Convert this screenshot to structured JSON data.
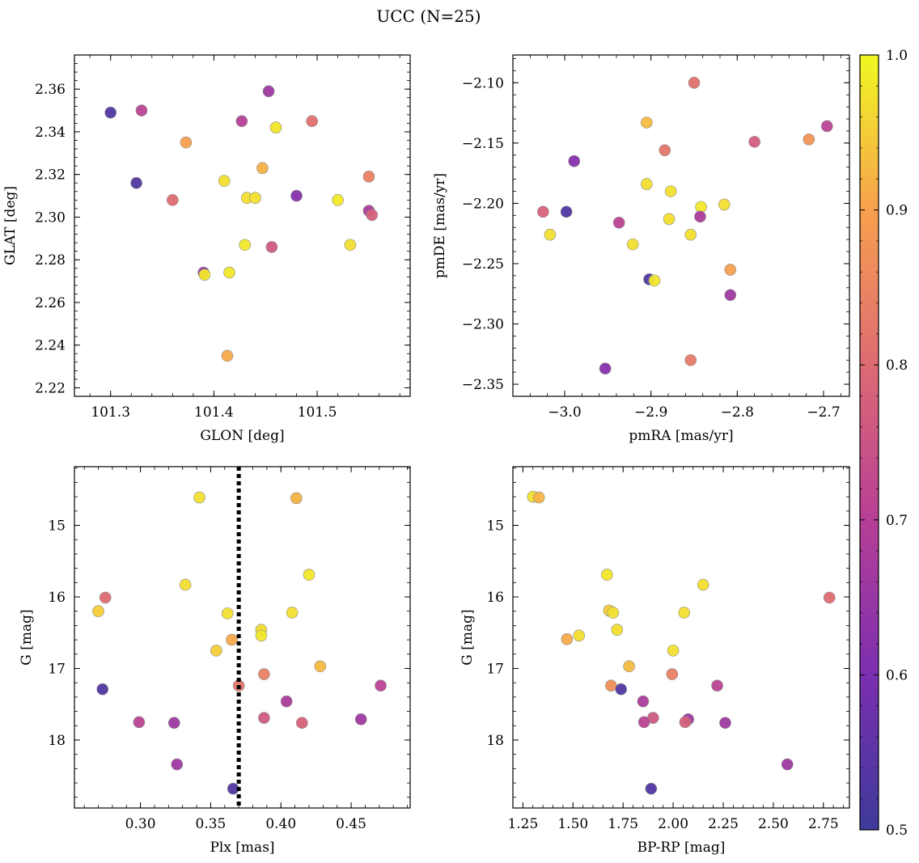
{
  "figure": {
    "title": "UCC (N=25)"
  },
  "colorbar": {
    "min": 0.5,
    "max": 1.0,
    "ticks": [
      0.5,
      0.6,
      0.7,
      0.8,
      0.9,
      1.0
    ],
    "tick_labels": [
      "0.5",
      "0.6",
      "0.7",
      "0.8",
      "0.9",
      "1.0"
    ],
    "colormap": "plasma"
  },
  "chart_data": [
    {
      "type": "scatter",
      "xlabel": "GLON [deg]",
      "ylabel": "GLAT [deg]",
      "xlim": [
        101.265,
        101.59
      ],
      "ylim": [
        2.216,
        2.376
      ],
      "xticks": [
        101.3,
        101.4,
        101.5
      ],
      "xtick_labels": [
        "101.3",
        "101.4",
        "101.5"
      ],
      "yticks": [
        2.22,
        2.24,
        2.26,
        2.28,
        2.3,
        2.32,
        2.34,
        2.36
      ],
      "ytick_labels": [
        "2.22",
        "2.24",
        "2.26",
        "2.28",
        "2.30",
        "2.32",
        "2.34",
        "2.36"
      ],
      "y_inverted": false,
      "points": [
        {
          "x": 101.3,
          "y": 2.349,
          "c": 0.53
        },
        {
          "x": 101.33,
          "y": 2.35,
          "c": 0.71
        },
        {
          "x": 101.325,
          "y": 2.316,
          "c": 0.53
        },
        {
          "x": 101.36,
          "y": 2.308,
          "c": 0.8
        },
        {
          "x": 101.373,
          "y": 2.335,
          "c": 0.9
        },
        {
          "x": 101.39,
          "y": 2.274,
          "c": 0.66
        },
        {
          "x": 101.391,
          "y": 2.273,
          "c": 0.98
        },
        {
          "x": 101.41,
          "y": 2.317,
          "c": 0.97
        },
        {
          "x": 101.413,
          "y": 2.235,
          "c": 0.91
        },
        {
          "x": 101.415,
          "y": 2.274,
          "c": 0.98
        },
        {
          "x": 101.427,
          "y": 2.345,
          "c": 0.7
        },
        {
          "x": 101.43,
          "y": 2.287,
          "c": 0.98
        },
        {
          "x": 101.432,
          "y": 2.309,
          "c": 0.97
        },
        {
          "x": 101.44,
          "y": 2.309,
          "c": 0.97
        },
        {
          "x": 101.447,
          "y": 2.323,
          "c": 0.92
        },
        {
          "x": 101.453,
          "y": 2.359,
          "c": 0.66
        },
        {
          "x": 101.456,
          "y": 2.286,
          "c": 0.76
        },
        {
          "x": 101.46,
          "y": 2.342,
          "c": 0.98
        },
        {
          "x": 101.48,
          "y": 2.31,
          "c": 0.62
        },
        {
          "x": 101.495,
          "y": 2.345,
          "c": 0.81
        },
        {
          "x": 101.52,
          "y": 2.308,
          "c": 0.98
        },
        {
          "x": 101.532,
          "y": 2.287,
          "c": 0.97
        },
        {
          "x": 101.55,
          "y": 2.319,
          "c": 0.84
        },
        {
          "x": 101.55,
          "y": 2.303,
          "c": 0.68
        },
        {
          "x": 101.553,
          "y": 2.301,
          "c": 0.78
        }
      ]
    },
    {
      "type": "scatter",
      "xlabel": "pmRA [mas/yr]",
      "ylabel": "pmDE [mas/yr]",
      "xlim": [
        -3.06,
        -2.67
      ],
      "ylim": [
        -2.36,
        -2.077
      ],
      "xticks": [
        -3.0,
        -2.9,
        -2.8,
        -2.7
      ],
      "xtick_labels": [
        "−3.0",
        "−2.9",
        "−2.8",
        "−2.7"
      ],
      "yticks": [
        -2.35,
        -2.3,
        -2.25,
        -2.2,
        -2.15,
        -2.1
      ],
      "ytick_labels": [
        "−2.35",
        "−2.30",
        "−2.25",
        "−2.20",
        "−2.15",
        "−2.10"
      ],
      "y_inverted": false,
      "points": [
        {
          "x": -2.85,
          "y": -2.1,
          "c": 0.81
        },
        {
          "x": -2.905,
          "y": -2.133,
          "c": 0.93
        },
        {
          "x": -2.696,
          "y": -2.136,
          "c": 0.71
        },
        {
          "x": -2.717,
          "y": -2.147,
          "c": 0.88
        },
        {
          "x": -2.78,
          "y": -2.149,
          "c": 0.77
        },
        {
          "x": -2.884,
          "y": -2.156,
          "c": 0.82
        },
        {
          "x": -2.989,
          "y": -2.165,
          "c": 0.62
        },
        {
          "x": -2.905,
          "y": -2.184,
          "c": 0.97
        },
        {
          "x": -2.877,
          "y": -2.19,
          "c": 0.97
        },
        {
          "x": -2.815,
          "y": -2.201,
          "c": 0.97
        },
        {
          "x": -2.842,
          "y": -2.203,
          "c": 0.98
        },
        {
          "x": -3.025,
          "y": -2.207,
          "c": 0.78
        },
        {
          "x": -2.998,
          "y": -2.207,
          "c": 0.53
        },
        {
          "x": -2.843,
          "y": -2.211,
          "c": 0.68
        },
        {
          "x": -2.879,
          "y": -2.213,
          "c": 0.97
        },
        {
          "x": -2.937,
          "y": -2.216,
          "c": 0.71
        },
        {
          "x": -3.017,
          "y": -2.226,
          "c": 0.97
        },
        {
          "x": -2.854,
          "y": -2.226,
          "c": 0.97
        },
        {
          "x": -2.921,
          "y": -2.234,
          "c": 0.97
        },
        {
          "x": -2.808,
          "y": -2.255,
          "c": 0.9
        },
        {
          "x": -2.902,
          "y": -2.263,
          "c": 0.53
        },
        {
          "x": -2.896,
          "y": -2.264,
          "c": 0.98
        },
        {
          "x": -2.808,
          "y": -2.276,
          "c": 0.66
        },
        {
          "x": -2.854,
          "y": -2.33,
          "c": 0.83
        },
        {
          "x": -2.953,
          "y": -2.337,
          "c": 0.62
        }
      ]
    },
    {
      "type": "scatter",
      "xlabel": "Plx [mas]",
      "ylabel": "G [mag]",
      "xlim": [
        0.253,
        0.492
      ],
      "ylim": [
        14.18,
        18.95
      ],
      "xticks": [
        0.3,
        0.35,
        0.4,
        0.45
      ],
      "xtick_labels": [
        "0.30",
        "0.35",
        "0.40",
        "0.45"
      ],
      "yticks": [
        15,
        16,
        17,
        18
      ],
      "ytick_labels": [
        "15",
        "16",
        "17",
        "18"
      ],
      "y_inverted": true,
      "vline": {
        "x": 0.37,
        "style": "dotted"
      },
      "points": [
        {
          "x": 0.342,
          "y": 14.61,
          "c": 0.97
        },
        {
          "x": 0.411,
          "y": 14.62,
          "c": 0.92
        },
        {
          "x": 0.42,
          "y": 15.69,
          "c": 0.98
        },
        {
          "x": 0.332,
          "y": 15.83,
          "c": 0.97
        },
        {
          "x": 0.275,
          "y": 16.01,
          "c": 0.8
        },
        {
          "x": 0.27,
          "y": 16.2,
          "c": 0.95
        },
        {
          "x": 0.408,
          "y": 16.22,
          "c": 0.97
        },
        {
          "x": 0.362,
          "y": 16.23,
          "c": 0.97
        },
        {
          "x": 0.386,
          "y": 16.46,
          "c": 0.97
        },
        {
          "x": 0.386,
          "y": 16.54,
          "c": 0.98
        },
        {
          "x": 0.365,
          "y": 16.6,
          "c": 0.91
        },
        {
          "x": 0.354,
          "y": 16.75,
          "c": 0.95
        },
        {
          "x": 0.428,
          "y": 16.97,
          "c": 0.93
        },
        {
          "x": 0.388,
          "y": 17.08,
          "c": 0.84
        },
        {
          "x": 0.37,
          "y": 17.24,
          "c": 0.82
        },
        {
          "x": 0.471,
          "y": 17.24,
          "c": 0.71
        },
        {
          "x": 0.273,
          "y": 17.29,
          "c": 0.53
        },
        {
          "x": 0.404,
          "y": 17.46,
          "c": 0.68
        },
        {
          "x": 0.388,
          "y": 17.69,
          "c": 0.76
        },
        {
          "x": 0.457,
          "y": 17.71,
          "c": 0.66
        },
        {
          "x": 0.299,
          "y": 17.75,
          "c": 0.71
        },
        {
          "x": 0.324,
          "y": 17.76,
          "c": 0.66
        },
        {
          "x": 0.415,
          "y": 17.76,
          "c": 0.78
        },
        {
          "x": 0.326,
          "y": 18.34,
          "c": 0.66
        },
        {
          "x": 0.366,
          "y": 18.68,
          "c": 0.53
        }
      ]
    },
    {
      "type": "scatter",
      "xlabel": "BP-RP [mag]",
      "ylabel": "G [mag]",
      "xlim": [
        1.2,
        2.88
      ],
      "ylim": [
        14.18,
        18.95
      ],
      "xticks": [
        1.25,
        1.5,
        1.75,
        2.0,
        2.25,
        2.5,
        2.75
      ],
      "xtick_labels": [
        "1.25",
        "1.50",
        "1.75",
        "2.00",
        "2.25",
        "2.50",
        "2.75"
      ],
      "yticks": [
        15,
        16,
        17,
        18
      ],
      "ytick_labels": [
        "15",
        "16",
        "17",
        "18"
      ],
      "y_inverted": true,
      "points": [
        {
          "x": 1.3,
          "y": 14.6,
          "c": 0.97
        },
        {
          "x": 1.33,
          "y": 14.61,
          "c": 0.92
        },
        {
          "x": 1.67,
          "y": 15.69,
          "c": 0.98
        },
        {
          "x": 2.15,
          "y": 15.83,
          "c": 0.97
        },
        {
          "x": 2.78,
          "y": 16.01,
          "c": 0.8
        },
        {
          "x": 1.68,
          "y": 16.19,
          "c": 0.95
        },
        {
          "x": 1.7,
          "y": 16.22,
          "c": 0.97
        },
        {
          "x": 2.055,
          "y": 16.22,
          "c": 0.97
        },
        {
          "x": 1.72,
          "y": 16.46,
          "c": 0.97
        },
        {
          "x": 1.53,
          "y": 16.54,
          "c": 0.97
        },
        {
          "x": 1.47,
          "y": 16.59,
          "c": 0.91
        },
        {
          "x": 2.0,
          "y": 16.75,
          "c": 0.97
        },
        {
          "x": 1.78,
          "y": 16.97,
          "c": 0.93
        },
        {
          "x": 1.995,
          "y": 17.08,
          "c": 0.84
        },
        {
          "x": 1.69,
          "y": 17.24,
          "c": 0.87
        },
        {
          "x": 2.22,
          "y": 17.24,
          "c": 0.71
        },
        {
          "x": 1.74,
          "y": 17.29,
          "c": 0.53
        },
        {
          "x": 1.85,
          "y": 17.46,
          "c": 0.68
        },
        {
          "x": 1.9,
          "y": 17.69,
          "c": 0.76
        },
        {
          "x": 2.075,
          "y": 17.71,
          "c": 0.66
        },
        {
          "x": 1.855,
          "y": 17.75,
          "c": 0.71
        },
        {
          "x": 2.06,
          "y": 17.75,
          "c": 0.78
        },
        {
          "x": 2.26,
          "y": 17.76,
          "c": 0.66
        },
        {
          "x": 2.57,
          "y": 18.34,
          "c": 0.66
        },
        {
          "x": 1.89,
          "y": 18.68,
          "c": 0.53
        }
      ]
    }
  ]
}
